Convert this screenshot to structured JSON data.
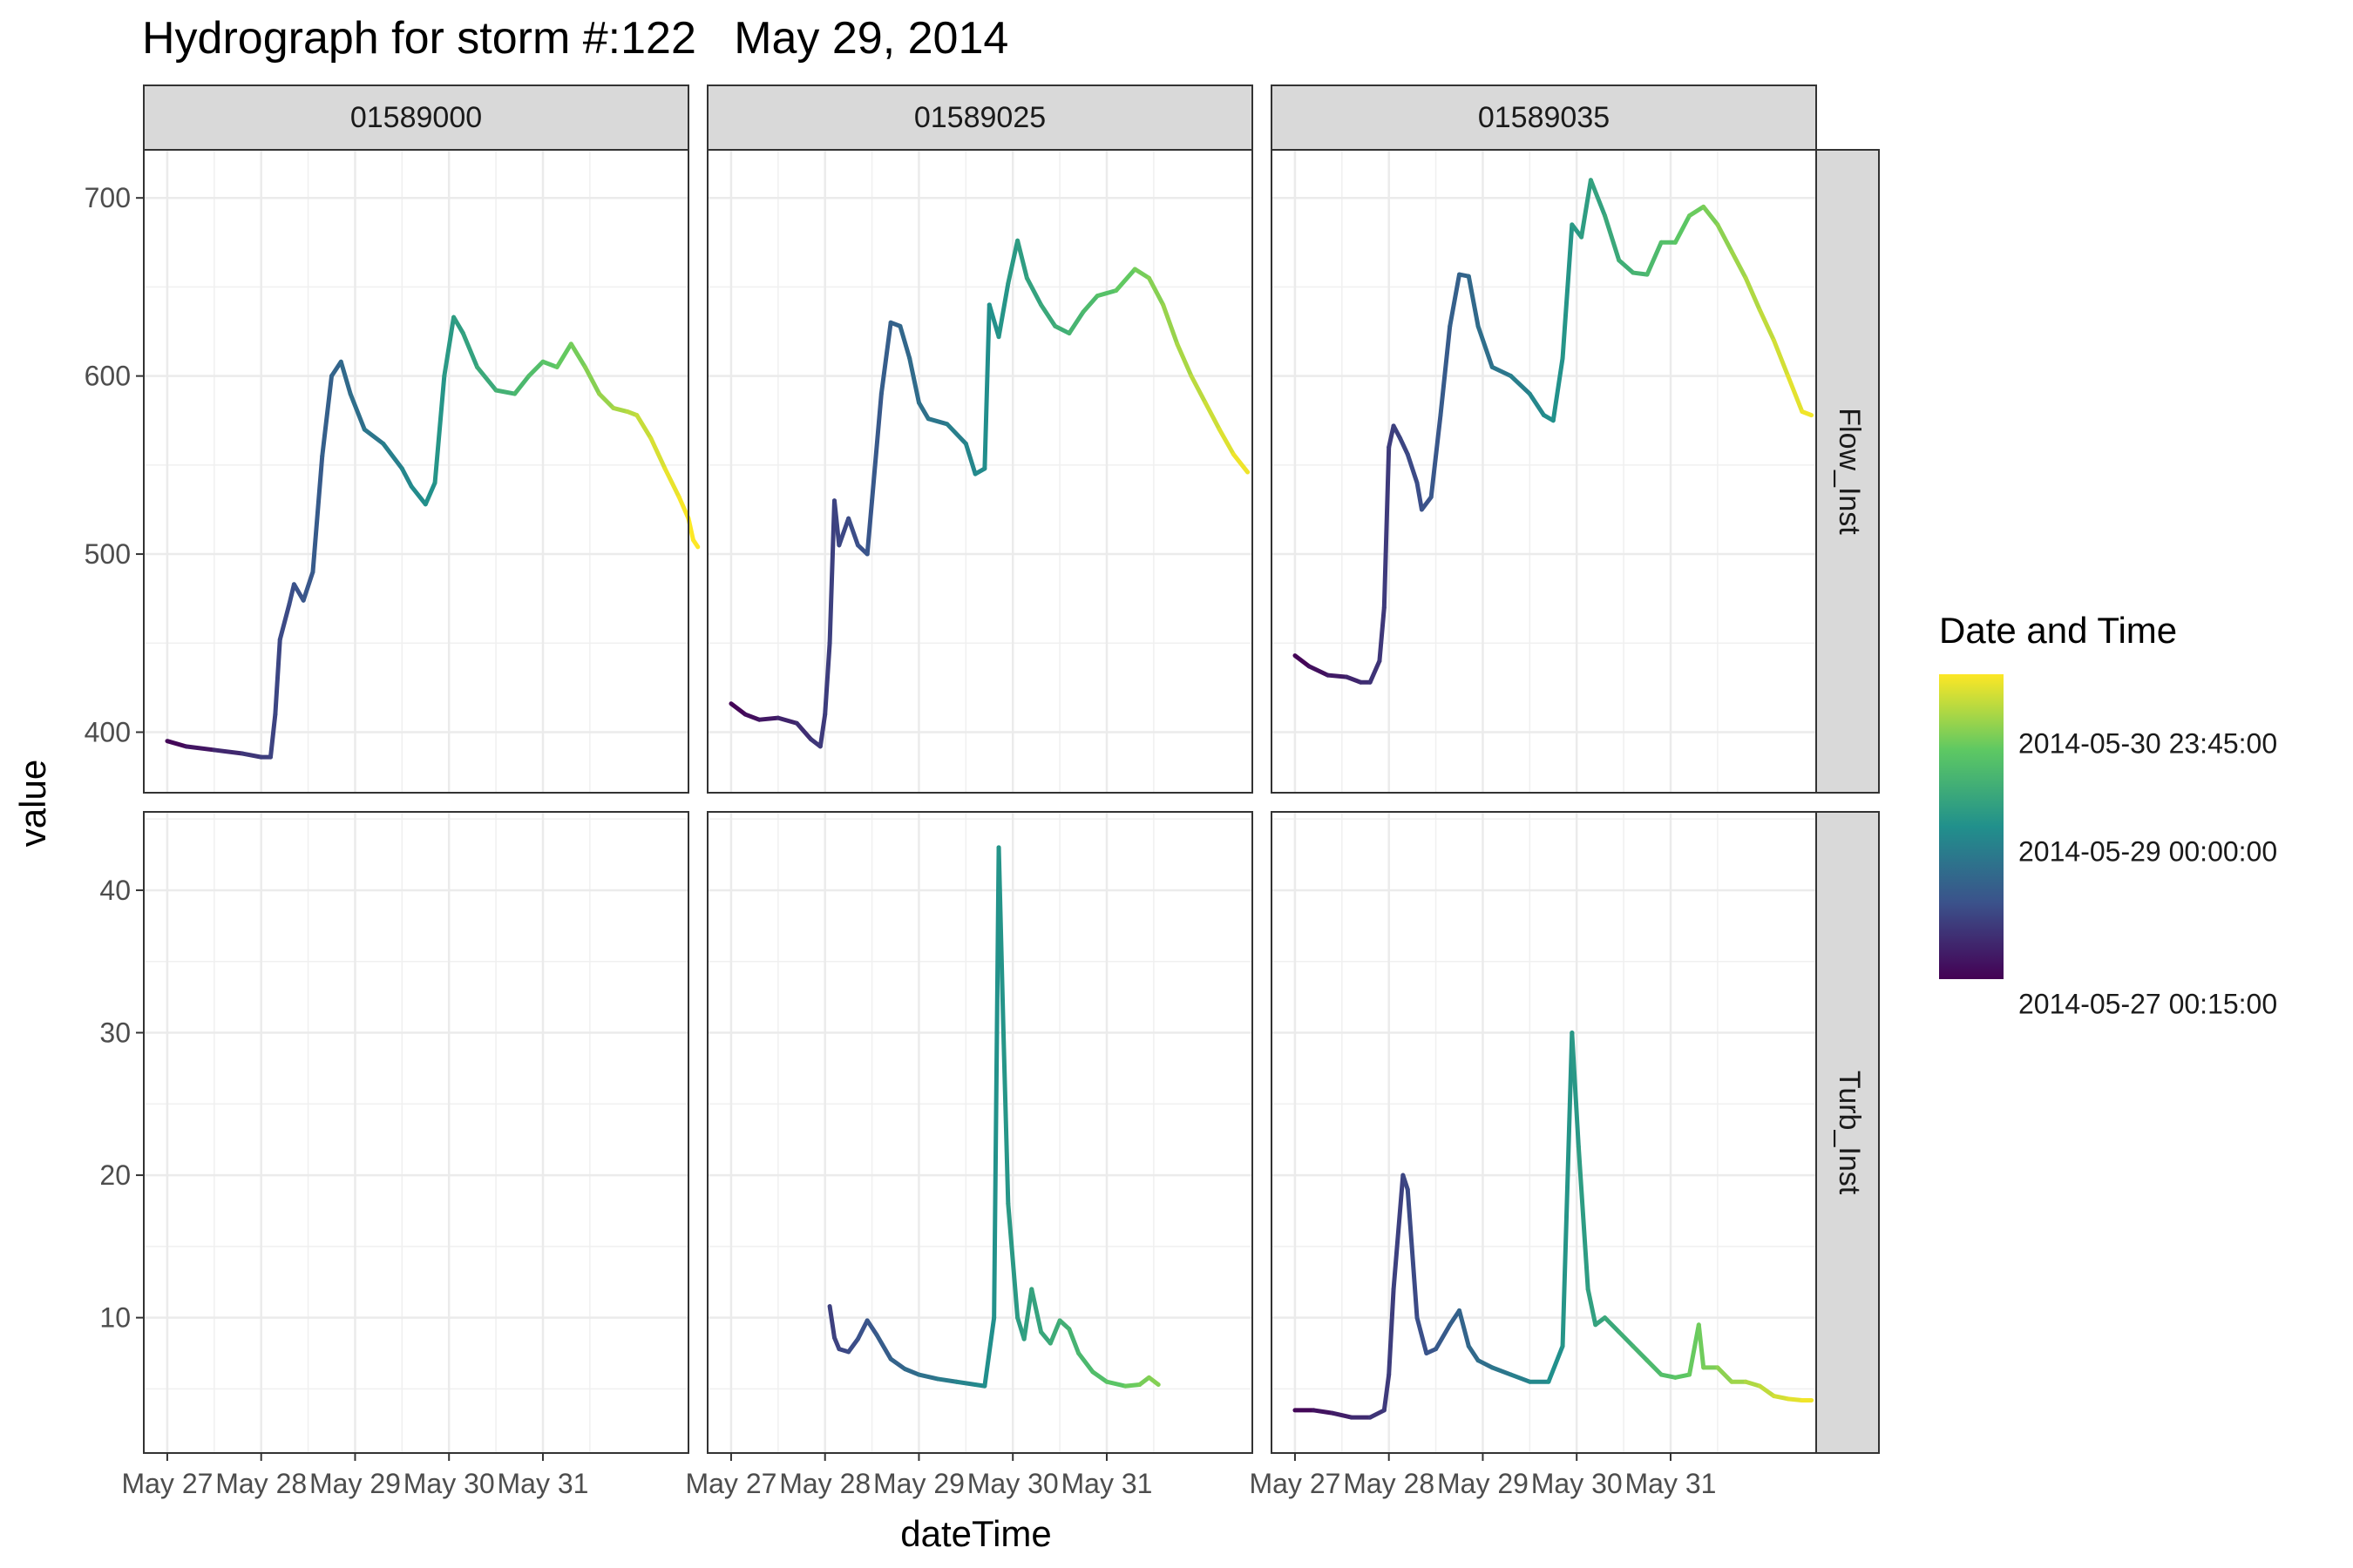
{
  "title": "Hydrograph for storm #:122   May 29, 2014",
  "chart_data": {
    "type": "line",
    "xlabel": "dateTime",
    "ylabel": "value",
    "x_ticks": [
      "May 27",
      "May 28",
      "May 29",
      "May 30",
      "May 31"
    ],
    "facet_columns": [
      "01589000",
      "01589025",
      "01589035"
    ],
    "facet_rows": [
      "Flow_Inst",
      "Turb_Inst"
    ],
    "ylim": {
      "Flow_Inst": [
        366,
        727
      ],
      "Turb_Inst": [
        0.5,
        45.5
      ]
    },
    "y_ticks": {
      "Flow_Inst": [
        400,
        500,
        600,
        700
      ],
      "Turb_Inst": [
        10,
        20,
        30,
        40
      ]
    },
    "color_scale": {
      "title": "Date and Time",
      "palette": "viridis",
      "colors": [
        "#440154",
        "#3B528B",
        "#21908C",
        "#5DC863",
        "#FDE725"
      ],
      "labels": [
        "2014-05-30 23:45:00",
        "2014-05-29 00:00:00",
        "2014-05-27 00:15:00"
      ]
    },
    "series": [
      {
        "site": "01589000",
        "variable": "Flow_Inst",
        "points": [
          [
            0.0,
            395
          ],
          [
            0.2,
            392
          ],
          [
            0.5,
            390
          ],
          [
            0.8,
            388
          ],
          [
            1.0,
            386
          ],
          [
            1.1,
            386
          ],
          [
            1.15,
            410
          ],
          [
            1.2,
            452
          ],
          [
            1.3,
            472
          ],
          [
            1.35,
            483
          ],
          [
            1.45,
            474
          ],
          [
            1.55,
            490
          ],
          [
            1.65,
            555
          ],
          [
            1.75,
            600
          ],
          [
            1.85,
            608
          ],
          [
            1.95,
            590
          ],
          [
            2.1,
            570
          ],
          [
            2.3,
            562
          ],
          [
            2.5,
            548
          ],
          [
            2.6,
            538
          ],
          [
            2.75,
            528
          ],
          [
            2.85,
            540
          ],
          [
            2.95,
            600
          ],
          [
            3.05,
            633
          ],
          [
            3.15,
            624
          ],
          [
            3.3,
            605
          ],
          [
            3.5,
            592
          ],
          [
            3.7,
            590
          ],
          [
            3.85,
            600
          ],
          [
            4.0,
            608
          ],
          [
            4.15,
            605
          ],
          [
            4.3,
            618
          ],
          [
            4.45,
            605
          ],
          [
            4.6,
            590
          ],
          [
            4.75,
            582
          ],
          [
            4.9,
            580
          ],
          [
            5.0,
            578
          ],
          [
            5.15,
            565
          ],
          [
            5.3,
            548
          ],
          [
            5.45,
            532
          ],
          [
            5.55,
            520
          ],
          [
            5.6,
            508
          ],
          [
            5.65,
            504
          ]
        ]
      },
      {
        "site": "01589000",
        "variable": "Turb_Inst",
        "points": []
      },
      {
        "site": "01589025",
        "variable": "Flow_Inst",
        "points": [
          [
            0.0,
            416
          ],
          [
            0.15,
            410
          ],
          [
            0.3,
            407
          ],
          [
            0.5,
            408
          ],
          [
            0.7,
            405
          ],
          [
            0.85,
            396
          ],
          [
            0.95,
            392
          ],
          [
            1.0,
            410
          ],
          [
            1.05,
            450
          ],
          [
            1.1,
            530
          ],
          [
            1.15,
            505
          ],
          [
            1.25,
            520
          ],
          [
            1.35,
            505
          ],
          [
            1.45,
            500
          ],
          [
            1.5,
            530
          ],
          [
            1.6,
            590
          ],
          [
            1.7,
            630
          ],
          [
            1.8,
            628
          ],
          [
            1.9,
            610
          ],
          [
            2.0,
            585
          ],
          [
            2.1,
            576
          ],
          [
            2.3,
            573
          ],
          [
            2.5,
            562
          ],
          [
            2.6,
            545
          ],
          [
            2.7,
            548
          ],
          [
            2.75,
            640
          ],
          [
            2.85,
            622
          ],
          [
            2.95,
            652
          ],
          [
            3.05,
            676
          ],
          [
            3.15,
            655
          ],
          [
            3.3,
            640
          ],
          [
            3.45,
            628
          ],
          [
            3.6,
            624
          ],
          [
            3.75,
            636
          ],
          [
            3.9,
            645
          ],
          [
            4.1,
            648
          ],
          [
            4.3,
            660
          ],
          [
            4.45,
            655
          ],
          [
            4.6,
            640
          ],
          [
            4.75,
            618
          ],
          [
            4.9,
            600
          ],
          [
            5.05,
            585
          ],
          [
            5.2,
            570
          ],
          [
            5.35,
            556
          ],
          [
            5.5,
            546
          ]
        ]
      },
      {
        "site": "01589025",
        "variable": "Turb_Inst",
        "points": [
          [
            1.05,
            10.8
          ],
          [
            1.1,
            8.6
          ],
          [
            1.15,
            7.8
          ],
          [
            1.25,
            7.6
          ],
          [
            1.35,
            8.5
          ],
          [
            1.45,
            9.8
          ],
          [
            1.55,
            8.8
          ],
          [
            1.7,
            7.1
          ],
          [
            1.85,
            6.4
          ],
          [
            2.0,
            6.0
          ],
          [
            2.2,
            5.7
          ],
          [
            2.4,
            5.5
          ],
          [
            2.6,
            5.3
          ],
          [
            2.7,
            5.2
          ],
          [
            2.8,
            10
          ],
          [
            2.85,
            43
          ],
          [
            2.9,
            30
          ],
          [
            2.95,
            18
          ],
          [
            3.05,
            10
          ],
          [
            3.12,
            8.5
          ],
          [
            3.2,
            12
          ],
          [
            3.3,
            9
          ],
          [
            3.4,
            8.2
          ],
          [
            3.5,
            9.8
          ],
          [
            3.6,
            9.2
          ],
          [
            3.7,
            7.5
          ],
          [
            3.85,
            6.2
          ],
          [
            4.0,
            5.5
          ],
          [
            4.2,
            5.2
          ],
          [
            4.35,
            5.3
          ],
          [
            4.45,
            5.8
          ],
          [
            4.55,
            5.3
          ]
        ]
      },
      {
        "site": "01589035",
        "variable": "Flow_Inst",
        "points": [
          [
            0.0,
            443
          ],
          [
            0.15,
            437
          ],
          [
            0.35,
            432
          ],
          [
            0.55,
            431
          ],
          [
            0.7,
            428
          ],
          [
            0.8,
            428
          ],
          [
            0.9,
            440
          ],
          [
            0.95,
            470
          ],
          [
            1.0,
            560
          ],
          [
            1.05,
            572
          ],
          [
            1.12,
            565
          ],
          [
            1.2,
            556
          ],
          [
            1.3,
            540
          ],
          [
            1.35,
            525
          ],
          [
            1.45,
            532
          ],
          [
            1.55,
            578
          ],
          [
            1.65,
            628
          ],
          [
            1.75,
            657
          ],
          [
            1.85,
            656
          ],
          [
            1.95,
            628
          ],
          [
            2.1,
            605
          ],
          [
            2.3,
            600
          ],
          [
            2.5,
            590
          ],
          [
            2.65,
            578
          ],
          [
            2.75,
            575
          ],
          [
            2.85,
            610
          ],
          [
            2.95,
            685
          ],
          [
            3.05,
            678
          ],
          [
            3.15,
            710
          ],
          [
            3.3,
            690
          ],
          [
            3.45,
            665
          ],
          [
            3.6,
            658
          ],
          [
            3.75,
            657
          ],
          [
            3.9,
            675
          ],
          [
            4.05,
            675
          ],
          [
            4.2,
            690
          ],
          [
            4.35,
            695
          ],
          [
            4.5,
            685
          ],
          [
            4.65,
            670
          ],
          [
            4.8,
            655
          ],
          [
            4.95,
            637
          ],
          [
            5.1,
            620
          ],
          [
            5.25,
            600
          ],
          [
            5.4,
            580
          ],
          [
            5.5,
            578
          ]
        ]
      },
      {
        "site": "01589035",
        "variable": "Turb_Inst",
        "points": [
          [
            0.0,
            3.5
          ],
          [
            0.2,
            3.5
          ],
          [
            0.4,
            3.3
          ],
          [
            0.6,
            3.0
          ],
          [
            0.8,
            3.0
          ],
          [
            0.95,
            3.5
          ],
          [
            1.0,
            6
          ],
          [
            1.05,
            12
          ],
          [
            1.15,
            20
          ],
          [
            1.2,
            19
          ],
          [
            1.3,
            10
          ],
          [
            1.4,
            7.5
          ],
          [
            1.5,
            7.8
          ],
          [
            1.65,
            9.5
          ],
          [
            1.75,
            10.5
          ],
          [
            1.85,
            8
          ],
          [
            1.95,
            7
          ],
          [
            2.1,
            6.5
          ],
          [
            2.3,
            6
          ],
          [
            2.5,
            5.5
          ],
          [
            2.7,
            5.5
          ],
          [
            2.85,
            8
          ],
          [
            2.95,
            30
          ],
          [
            3.02,
            22
          ],
          [
            3.12,
            12
          ],
          [
            3.2,
            9.5
          ],
          [
            3.3,
            10
          ],
          [
            3.45,
            9
          ],
          [
            3.6,
            8
          ],
          [
            3.75,
            7
          ],
          [
            3.9,
            6
          ],
          [
            4.05,
            5.8
          ],
          [
            4.2,
            6
          ],
          [
            4.3,
            9.5
          ],
          [
            4.35,
            6.5
          ],
          [
            4.5,
            6.5
          ],
          [
            4.65,
            5.5
          ],
          [
            4.8,
            5.5
          ],
          [
            4.95,
            5.2
          ],
          [
            5.1,
            4.5
          ],
          [
            5.25,
            4.3
          ],
          [
            5.4,
            4.2
          ],
          [
            5.5,
            4.2
          ]
        ]
      }
    ]
  }
}
